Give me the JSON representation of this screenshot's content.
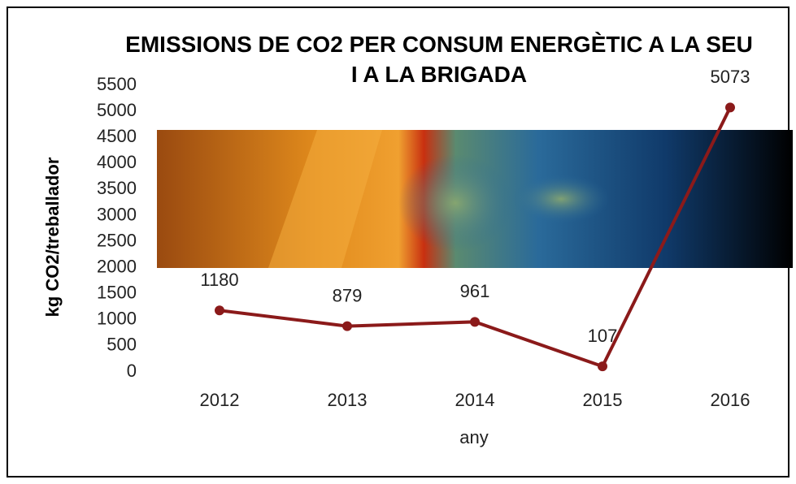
{
  "chart_data": {
    "type": "line",
    "title": "EMISSIONS DE CO2 PER CONSUM ENERGÈTIC A LA SEU I A LA BRIGADA",
    "x_label": "any",
    "y_label": "kg CO2/treballador",
    "categories": [
      "2012",
      "2013",
      "2014",
      "2015",
      "2016"
    ],
    "values": [
      1180,
      879,
      961,
      107,
      5073
    ],
    "color": "#8b1a1a",
    "ylim": [
      0,
      5500
    ],
    "yticks": [
      0,
      500,
      1000,
      1500,
      2000,
      2500,
      3000,
      3500,
      4000,
      4500,
      5000,
      5500
    ],
    "grid": false
  }
}
